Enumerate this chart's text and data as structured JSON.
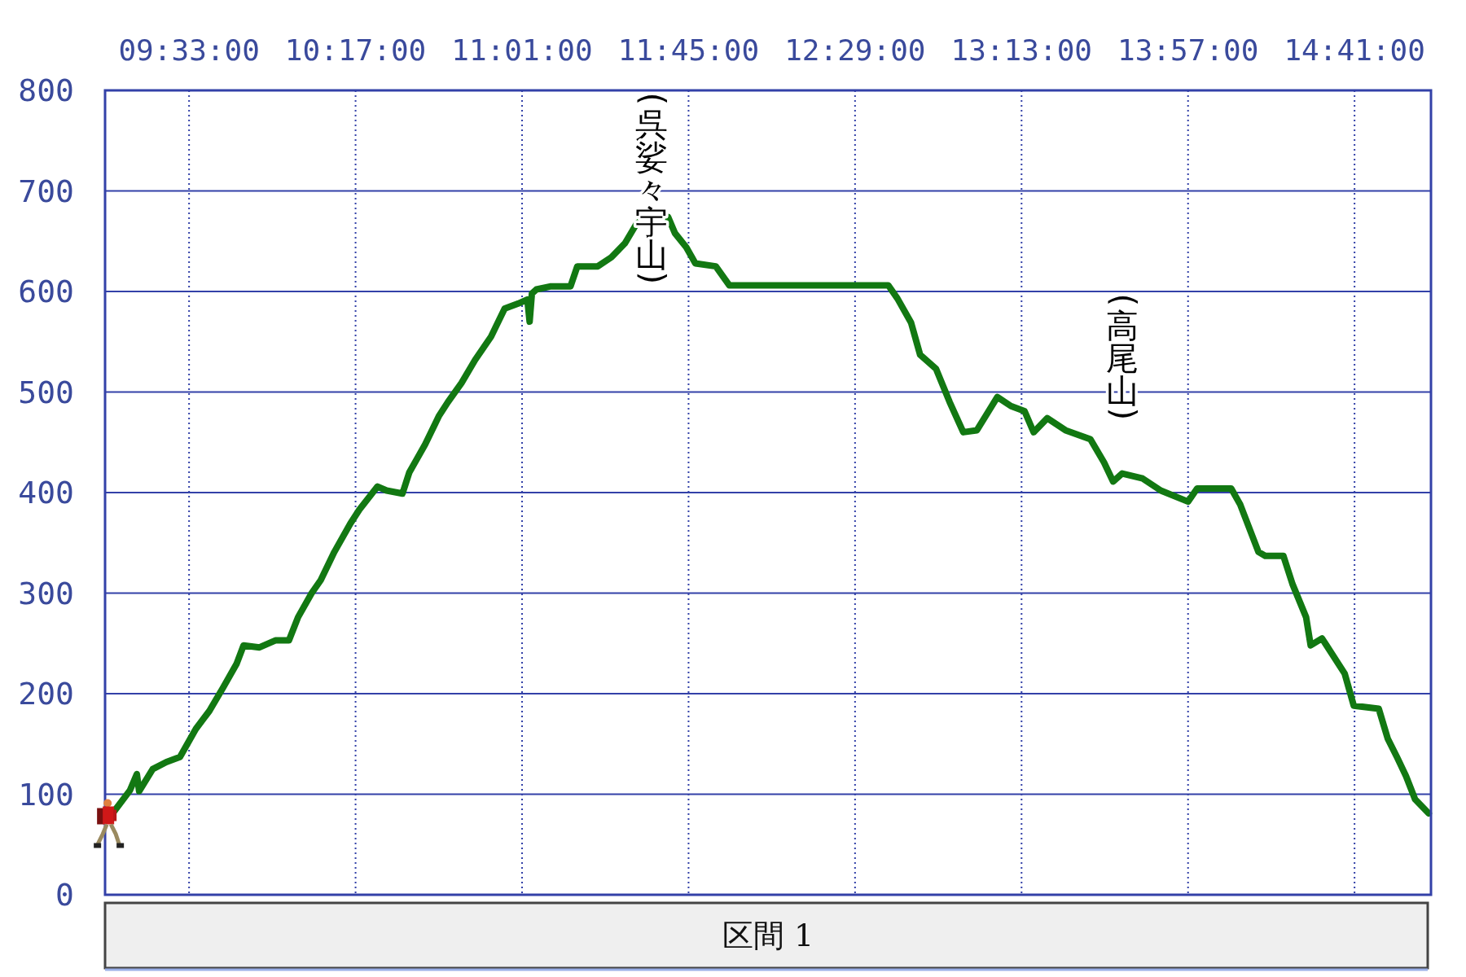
{
  "chart_data": {
    "type": "line",
    "color": "#127812",
    "xlim": [
      9.18,
      15.02
    ],
    "xticks": [
      {
        "value": 9.55,
        "label": "09:33:00"
      },
      {
        "value": 10.2833,
        "label": "10:17:00"
      },
      {
        "value": 11.0167,
        "label": "11:01:00"
      },
      {
        "value": 11.75,
        "label": "11:45:00"
      },
      {
        "value": 12.4833,
        "label": "12:29:00"
      },
      {
        "value": 13.2167,
        "label": "13:13:00"
      },
      {
        "value": 13.95,
        "label": "13:57:00"
      },
      {
        "value": 14.6833,
        "label": "14:41:00"
      }
    ],
    "ylim": [
      0,
      800
    ],
    "yticks": [
      0,
      100,
      200,
      300,
      400,
      500,
      600,
      700,
      800
    ],
    "grid": true,
    "x": [
      9.22,
      9.29,
      9.32,
      9.33,
      9.39,
      9.45,
      9.51,
      9.58,
      9.64,
      9.7,
      9.76,
      9.79,
      9.86,
      9.93,
      9.99,
      10.03,
      10.09,
      10.13,
      10.19,
      10.26,
      10.3,
      10.38,
      10.42,
      10.49,
      10.52,
      10.59,
      10.65,
      10.69,
      10.75,
      10.81,
      10.88,
      10.94,
      11.0,
      11.04,
      11.05,
      11.06,
      11.08,
      11.14,
      11.23,
      11.26,
      11.35,
      11.41,
      11.47,
      11.52,
      11.56,
      11.66,
      11.69,
      11.74,
      11.78,
      11.87,
      11.93,
      12.63,
      12.67,
      12.73,
      12.77,
      12.84,
      12.9,
      12.96,
      13.02,
      13.11,
      13.17,
      13.23,
      13.27,
      13.33,
      13.41,
      13.52,
      13.58,
      13.62,
      13.66,
      13.75,
      13.83,
      13.95,
      13.99,
      14.14,
      14.18,
      14.26,
      14.29,
      14.37,
      14.41,
      14.47,
      14.49,
      14.54,
      14.56,
      14.64,
      14.68,
      14.79,
      14.83,
      14.87,
      14.91,
      14.95,
      15.01
    ],
    "values": [
      83,
      104,
      120,
      103,
      125,
      132,
      137,
      165,
      183,
      206,
      230,
      248,
      246,
      253,
      253,
      276,
      300,
      313,
      341,
      369,
      383,
      406,
      402,
      399,
      420,
      448,
      476,
      490,
      509,
      532,
      555,
      583,
      588,
      592,
      570,
      598,
      602,
      605,
      605,
      625,
      625,
      634,
      648,
      667,
      674,
      674,
      658,
      644,
      628,
      625,
      606,
      606,
      593,
      569,
      537,
      523,
      490,
      460,
      462,
      495,
      486,
      481,
      460,
      474,
      462,
      453,
      430,
      411,
      419,
      414,
      402,
      391,
      404,
      404,
      388,
      341,
      337,
      337,
      309,
      276,
      248,
      255,
      248,
      220,
      188,
      185,
      155,
      137,
      118,
      95,
      81
    ],
    "annotations": [
      "(呉娑々宇山)",
      "(高尾山)",
      "区間 1"
    ]
  }
}
